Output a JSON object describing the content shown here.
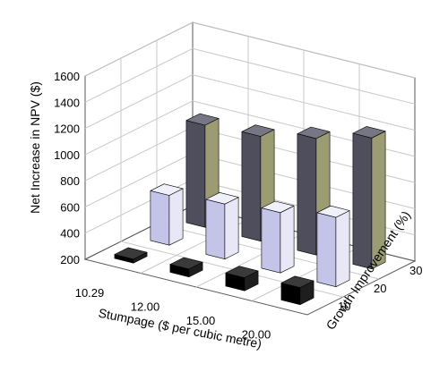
{
  "chart_data": {
    "type": "bar",
    "variant": "3d-grid",
    "title": "",
    "xlabel": "Stumpage ($ per cubic metre)",
    "ylabel": "Growth Improvement (%)",
    "zlabel": "Net Increase in NPV ($)",
    "categories": [
      "10.29",
      "12.00",
      "15.00",
      "20.00"
    ],
    "depth_categories": [
      "10",
      "20",
      "30"
    ],
    "z_ticks": [
      "200",
      "400",
      "600",
      "800",
      "1000",
      "1200",
      "1400",
      "1600"
    ],
    "zlim": [
      200,
      1600
    ],
    "grid": true,
    "legend": "none",
    "series": [
      {
        "values": [
          230,
          260,
          300,
          330
        ],
        "colors": {
          "top": "#3a3a3a",
          "front": "#000000",
          "side": "#1e1e1e"
        }
      },
      {
        "values": [
          580,
          620,
          660,
          730
        ],
        "colors": {
          "top": "#f0f0fb",
          "front": "#c4c4e8",
          "side": "#e7e7f6"
        }
      },
      {
        "values": [
          980,
          1000,
          1090,
          1200
        ],
        "colors": {
          "top": "#767684",
          "front": "#4e4e5c",
          "side": "#9c9c72"
        }
      }
    ]
  }
}
